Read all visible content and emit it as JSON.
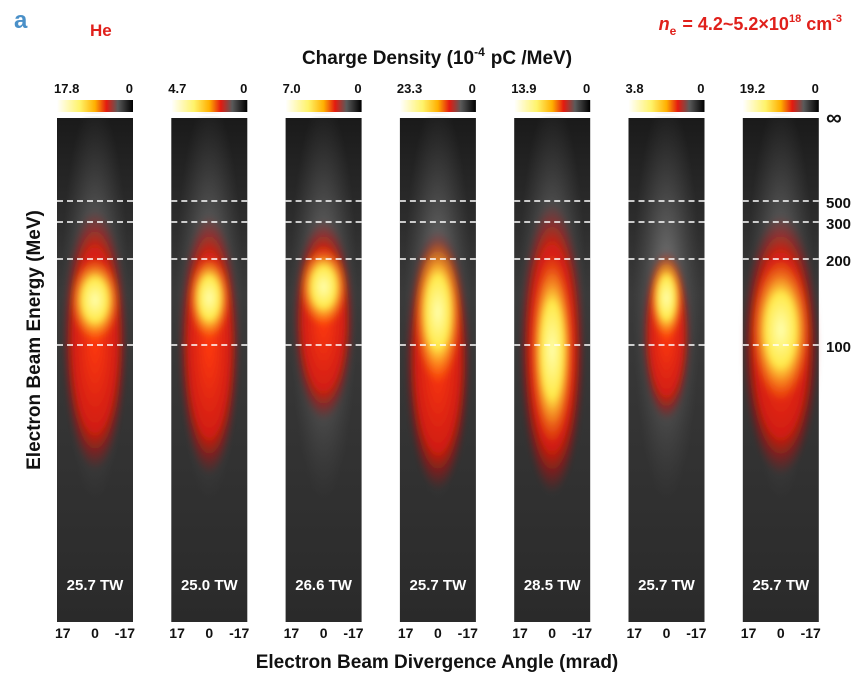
{
  "panel_label": "a",
  "gas": "He",
  "density": {
    "variable": "n",
    "subscript": "e",
    "value": "= 4.2~5.2×10",
    "exponent": "18",
    "unit": "cm",
    "unit_exponent": "-3"
  },
  "colorbar_title": {
    "text": "Charge Density (10",
    "exponent": "-4",
    "unit": "pC /MeV)"
  },
  "y_axis_label": "Electron Beam Energy (MeV)",
  "x_axis_label": "Electron Beam Divergence Angle (mrad)",
  "energy_ticks": [
    "∞",
    "500",
    "300",
    "200",
    "100"
  ],
  "panels": [
    {
      "max": "17.8",
      "min": "0",
      "power": "25.7 TW",
      "x_ticks": [
        "17",
        "0",
        "-17"
      ]
    },
    {
      "max": "4.7",
      "min": "0",
      "power": "25.0 TW",
      "x_ticks": [
        "17",
        "0",
        "-17"
      ]
    },
    {
      "max": "7.0",
      "min": "0",
      "power": "26.6 TW",
      "x_ticks": [
        "17",
        "0",
        "-17"
      ]
    },
    {
      "max": "23.3",
      "min": "0",
      "power": "25.7 TW",
      "x_ticks": [
        "17",
        "0",
        "-17"
      ]
    },
    {
      "max": "13.9",
      "min": "0",
      "power": "28.5 TW",
      "x_ticks": [
        "17",
        "0",
        "-17"
      ]
    },
    {
      "max": "3.8",
      "min": "0",
      "power": "25.7 TW",
      "x_ticks": [
        "17",
        "0",
        "-17"
      ]
    },
    {
      "max": "19.2",
      "min": "0",
      "power": "25.7 TW",
      "x_ticks": [
        "17",
        "0",
        "-17"
      ]
    }
  ]
}
